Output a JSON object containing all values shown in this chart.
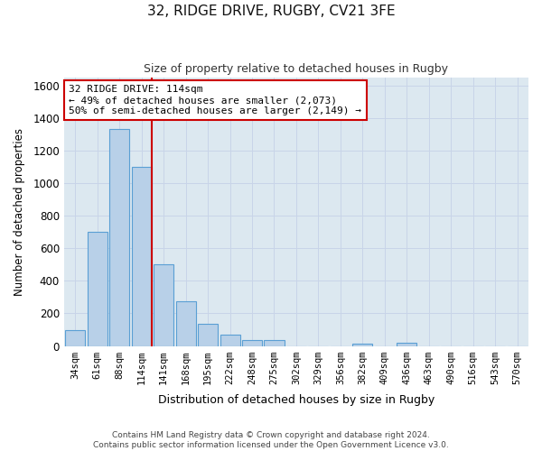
{
  "title_line1": "32, RIDGE DRIVE, RUGBY, CV21 3FE",
  "title_line2": "Size of property relative to detached houses in Rugby",
  "xlabel": "Distribution of detached houses by size in Rugby",
  "ylabel": "Number of detached properties",
  "categories": [
    "34sqm",
    "61sqm",
    "88sqm",
    "114sqm",
    "141sqm",
    "168sqm",
    "195sqm",
    "222sqm",
    "248sqm",
    "275sqm",
    "302sqm",
    "329sqm",
    "356sqm",
    "382sqm",
    "409sqm",
    "436sqm",
    "463sqm",
    "490sqm",
    "516sqm",
    "543sqm",
    "570sqm"
  ],
  "values": [
    95,
    700,
    1330,
    1100,
    500,
    275,
    135,
    70,
    35,
    35,
    0,
    0,
    0,
    15,
    0,
    20,
    0,
    0,
    0,
    0,
    0
  ],
  "bar_color": "#b8d0e8",
  "bar_edge_color": "#5a9fd4",
  "vline_color": "#cc0000",
  "annotation_text": "32 RIDGE DRIVE: 114sqm\n← 49% of detached houses are smaller (2,073)\n50% of semi-detached houses are larger (2,149) →",
  "annotation_box_color": "#ffffff",
  "annotation_box_edge": "#cc0000",
  "ylim": [
    0,
    1650
  ],
  "yticks": [
    0,
    200,
    400,
    600,
    800,
    1000,
    1200,
    1400,
    1600
  ],
  "grid_color": "#c8d4e8",
  "background_color": "#dce8f0",
  "figure_color": "#ffffff",
  "footer": "Contains HM Land Registry data © Crown copyright and database right 2024.\nContains public sector information licensed under the Open Government Licence v3.0."
}
